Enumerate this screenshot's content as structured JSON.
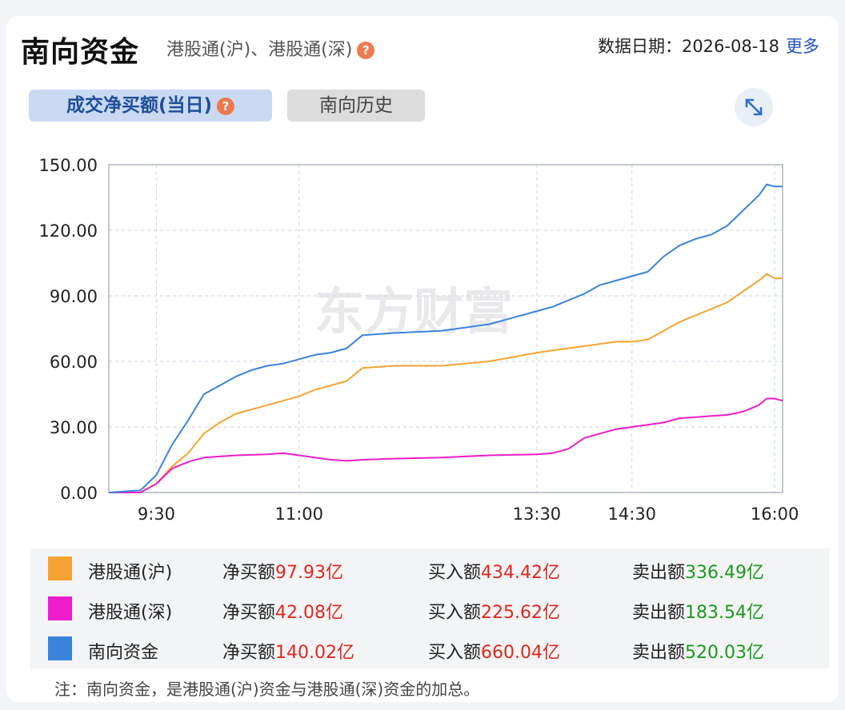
{
  "header": {
    "title": "南向资金",
    "subtitle": "港股通(沪)、港股通(深)",
    "help_glyph": "?",
    "date_label": "数据日期：",
    "date_value": "2026-08-18",
    "more_label": "更多"
  },
  "tabs": [
    {
      "label": "成交净买额(当日)",
      "active": true
    },
    {
      "label": "南向历史",
      "active": false
    }
  ],
  "expand_icon": "expand-arrows-icon",
  "watermark": "东方财富",
  "chart_data": {
    "type": "line",
    "y_ticks": [
      "150.00",
      "120.00",
      "90.00",
      "60.00",
      "30.00",
      "0.00"
    ],
    "ylim": [
      0,
      150
    ],
    "x_ticks": [
      "9:30",
      "11:00",
      "13:30",
      "14:30",
      "16:00"
    ],
    "grid": true,
    "series": [
      {
        "name": "港股通(沪)",
        "color": "#f5a431",
        "points": [
          [
            "9:00",
            0
          ],
          [
            "9:20",
            0
          ],
          [
            "9:30",
            4
          ],
          [
            "9:40",
            12
          ],
          [
            "9:50",
            18
          ],
          [
            "10:00",
            27
          ],
          [
            "10:10",
            32
          ],
          [
            "10:20",
            36
          ],
          [
            "10:30",
            38
          ],
          [
            "10:40",
            40
          ],
          [
            "10:50",
            42
          ],
          [
            "11:00",
            44
          ],
          [
            "11:10",
            47
          ],
          [
            "11:20",
            49
          ],
          [
            "11:30",
            51
          ],
          [
            "11:40",
            57
          ],
          [
            "12:00",
            58
          ],
          [
            "12:30",
            58
          ],
          [
            "13:00",
            60
          ],
          [
            "13:30",
            64
          ],
          [
            "13:40",
            65
          ],
          [
            "14:00",
            67
          ],
          [
            "14:10",
            68
          ],
          [
            "14:20",
            69
          ],
          [
            "14:30",
            69
          ],
          [
            "14:40",
            70
          ],
          [
            "14:50",
            74
          ],
          [
            "15:00",
            78
          ],
          [
            "15:10",
            81
          ],
          [
            "15:20",
            84
          ],
          [
            "15:30",
            87
          ],
          [
            "15:40",
            92
          ],
          [
            "15:50",
            97
          ],
          [
            "15:55",
            100
          ],
          [
            "16:00",
            98
          ],
          [
            "16:05",
            98
          ]
        ]
      },
      {
        "name": "港股通(深)",
        "color": "#ee1ccd",
        "points": [
          [
            "9:00",
            0
          ],
          [
            "9:20",
            0
          ],
          [
            "9:30",
            4
          ],
          [
            "9:40",
            11
          ],
          [
            "9:50",
            14
          ],
          [
            "10:00",
            16
          ],
          [
            "10:20",
            17
          ],
          [
            "10:40",
            17.5
          ],
          [
            "10:50",
            18
          ],
          [
            "11:00",
            17
          ],
          [
            "11:10",
            16
          ],
          [
            "11:20",
            15
          ],
          [
            "11:30",
            14.5
          ],
          [
            "11:40",
            15
          ],
          [
            "12:00",
            15.5
          ],
          [
            "12:30",
            16
          ],
          [
            "13:00",
            17
          ],
          [
            "13:30",
            17.5
          ],
          [
            "13:40",
            18
          ],
          [
            "13:50",
            20
          ],
          [
            "14:00",
            25
          ],
          [
            "14:10",
            27
          ],
          [
            "14:20",
            29
          ],
          [
            "14:30",
            30
          ],
          [
            "14:40",
            31
          ],
          [
            "14:50",
            32
          ],
          [
            "15:00",
            34
          ],
          [
            "15:10",
            34.5
          ],
          [
            "15:20",
            35
          ],
          [
            "15:30",
            35.5
          ],
          [
            "15:40",
            37
          ],
          [
            "15:50",
            40
          ],
          [
            "15:55",
            43
          ],
          [
            "16:00",
            43
          ],
          [
            "16:05",
            42
          ]
        ]
      },
      {
        "name": "南向资金",
        "color": "#3a84dc",
        "points": [
          [
            "9:00",
            0
          ],
          [
            "9:20",
            1
          ],
          [
            "9:30",
            8
          ],
          [
            "9:40",
            22
          ],
          [
            "9:50",
            33
          ],
          [
            "10:00",
            45
          ],
          [
            "10:10",
            49
          ],
          [
            "10:20",
            53
          ],
          [
            "10:30",
            56
          ],
          [
            "10:40",
            58
          ],
          [
            "10:50",
            59
          ],
          [
            "11:00",
            61
          ],
          [
            "11:10",
            63
          ],
          [
            "11:20",
            64
          ],
          [
            "11:30",
            66
          ],
          [
            "11:40",
            72
          ],
          [
            "12:00",
            73
          ],
          [
            "12:30",
            74
          ],
          [
            "13:00",
            77
          ],
          [
            "13:30",
            83
          ],
          [
            "13:40",
            85
          ],
          [
            "14:00",
            91
          ],
          [
            "14:10",
            95
          ],
          [
            "14:20",
            97
          ],
          [
            "14:30",
            99
          ],
          [
            "14:40",
            101
          ],
          [
            "14:50",
            108
          ],
          [
            "15:00",
            113
          ],
          [
            "15:10",
            116
          ],
          [
            "15:20",
            118
          ],
          [
            "15:30",
            122
          ],
          [
            "15:40",
            129
          ],
          [
            "15:50",
            136
          ],
          [
            "15:55",
            141
          ],
          [
            "16:00",
            140
          ],
          [
            "16:05",
            140
          ]
        ]
      }
    ]
  },
  "legend_rows": [
    {
      "name": "港股通(沪)",
      "color": "#f5a431",
      "net_label": "净买额",
      "net_value": "97.93亿",
      "buy_label": "买入额",
      "buy_value": "434.42亿",
      "sell_label": "卖出额",
      "sell_value": "336.49亿"
    },
    {
      "name": "港股通(深)",
      "color": "#ee1ccd",
      "net_label": "净买额",
      "net_value": "42.08亿",
      "buy_label": "买入额",
      "buy_value": "225.62亿",
      "sell_label": "卖出额",
      "sell_value": "183.54亿"
    },
    {
      "name": "南向资金",
      "color": "#3a84dc",
      "net_label": "净买额",
      "net_value": "140.02亿",
      "buy_label": "买入额",
      "buy_value": "660.04亿",
      "sell_label": "卖出额",
      "sell_value": "520.03亿"
    }
  ],
  "note": "注：南向资金，是港股通(沪)资金与港股通(深)资金的加总。"
}
